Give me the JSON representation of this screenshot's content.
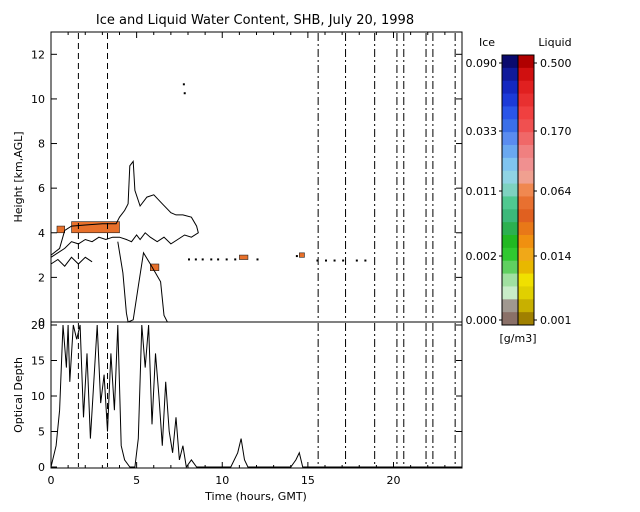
{
  "title": "Ice and Liquid Water Content, SHB, July 20, 1998",
  "chart_data": [
    {
      "type": "heatmap",
      "panel": "top",
      "ylabel": "Height [km,AGL]",
      "xlim": [
        0,
        24
      ],
      "ylim": [
        0,
        13
      ],
      "yticks": [
        0,
        2,
        4,
        6,
        8,
        10,
        12
      ],
      "vertical_markers": {
        "dashed": [
          1.6,
          3.3
        ],
        "dash_dot": [
          15.6,
          17.2,
          18.9,
          20.2,
          20.6,
          21.9,
          22.3,
          23.6
        ]
      },
      "cloud_boundary": {
        "upper": [
          [
            0.0,
            3.0
          ],
          [
            0.5,
            3.3
          ],
          [
            0.8,
            4.1
          ],
          [
            1.2,
            4.3
          ],
          [
            2.0,
            4.35
          ],
          [
            3.0,
            4.4
          ],
          [
            3.8,
            4.4
          ],
          [
            4.0,
            4.7
          ],
          [
            4.3,
            5.0
          ],
          [
            4.5,
            5.3
          ],
          [
            4.6,
            7.0
          ],
          [
            4.8,
            7.2
          ],
          [
            4.9,
            5.9
          ],
          [
            5.2,
            5.2
          ],
          [
            5.6,
            5.6
          ],
          [
            6.0,
            5.7
          ],
          [
            6.5,
            5.3
          ],
          [
            7.0,
            4.9
          ],
          [
            7.3,
            4.8
          ],
          [
            7.7,
            4.8
          ],
          [
            8.2,
            4.7
          ],
          [
            8.5,
            4.3
          ],
          [
            8.6,
            4.0
          ],
          [
            8.2,
            3.8
          ],
          [
            7.8,
            3.9
          ],
          [
            7.4,
            3.7
          ],
          [
            7.0,
            3.5
          ],
          [
            6.6,
            3.8
          ],
          [
            6.2,
            3.6
          ],
          [
            5.8,
            3.8
          ],
          [
            5.5,
            4.0
          ],
          [
            5.2,
            3.7
          ],
          [
            5.0,
            3.9
          ],
          [
            4.7,
            3.6
          ],
          [
            4.4,
            3.7
          ],
          [
            4.0,
            3.8
          ],
          [
            3.6,
            3.8
          ],
          [
            3.2,
            3.7
          ],
          [
            2.8,
            3.8
          ],
          [
            2.4,
            3.6
          ],
          [
            2.0,
            3.7
          ],
          [
            1.6,
            3.5
          ],
          [
            1.2,
            3.6
          ],
          [
            0.8,
            3.3
          ],
          [
            0.4,
            3.1
          ],
          [
            0.0,
            2.9
          ]
        ],
        "lower": [
          [
            3.9,
            3.6
          ],
          [
            4.2,
            2.2
          ],
          [
            4.4,
            0.4
          ],
          [
            4.5,
            0.0
          ],
          [
            4.8,
            0.1
          ],
          [
            5.1,
            1.6
          ],
          [
            5.4,
            3.1
          ],
          [
            5.8,
            2.6
          ],
          [
            6.1,
            2.2
          ],
          [
            6.4,
            1.8
          ],
          [
            6.6,
            0.3
          ],
          [
            6.8,
            0.0
          ]
        ],
        "lower2": [
          [
            0.0,
            2.6
          ],
          [
            0.4,
            2.8
          ],
          [
            0.8,
            2.5
          ],
          [
            1.2,
            2.9
          ],
          [
            1.6,
            2.6
          ],
          [
            2.0,
            2.9
          ],
          [
            2.4,
            2.7
          ]
        ]
      },
      "cells": [
        {
          "t0": 0.35,
          "t1": 0.8,
          "h0": 4.0,
          "h1": 4.3,
          "color": "#e8702a"
        },
        {
          "t0": 1.2,
          "t1": 4.0,
          "h0": 4.0,
          "h1": 4.5,
          "color": "#e8702a"
        },
        {
          "t0": 5.8,
          "t1": 6.3,
          "h0": 2.3,
          "h1": 2.6,
          "color": "#e8702a"
        },
        {
          "t0": 11.0,
          "t1": 11.5,
          "h0": 2.8,
          "h1": 3.0,
          "color": "#e8702a"
        },
        {
          "t0": 14.5,
          "t1": 14.8,
          "h0": 2.9,
          "h1": 3.1,
          "color": "#e8702a"
        }
      ],
      "specks": [
        [
          7.7,
          10.7
        ],
        [
          7.75,
          10.3
        ],
        [
          8.0,
          2.85
        ],
        [
          8.4,
          2.85
        ],
        [
          8.8,
          2.85
        ],
        [
          9.3,
          2.85
        ],
        [
          9.7,
          2.85
        ],
        [
          10.2,
          2.85
        ],
        [
          10.7,
          2.85
        ],
        [
          12.0,
          2.85
        ],
        [
          14.3,
          3.0
        ],
        [
          15.5,
          2.8
        ],
        [
          16.0,
          2.8
        ],
        [
          16.5,
          2.8
        ],
        [
          17.0,
          2.8
        ],
        [
          17.8,
          2.8
        ],
        [
          18.3,
          2.8
        ]
      ]
    },
    {
      "type": "line",
      "panel": "bottom",
      "ylabel": "Optical Depth",
      "xlabel": "Time (hours, GMT)",
      "xlim": [
        0,
        24
      ],
      "ylim": [
        0,
        20
      ],
      "yticks": [
        0,
        5,
        10,
        15,
        20
      ],
      "xticks": [
        0,
        5,
        10,
        15,
        20
      ],
      "x": [
        0.0,
        0.3,
        0.5,
        0.7,
        0.9,
        1.0,
        1.1,
        1.3,
        1.5,
        1.7,
        1.9,
        2.1,
        2.3,
        2.5,
        2.7,
        2.9,
        3.1,
        3.3,
        3.5,
        3.7,
        3.9,
        4.1,
        4.3,
        4.6,
        4.9,
        5.1,
        5.3,
        5.5,
        5.7,
        5.9,
        6.1,
        6.3,
        6.5,
        6.7,
        6.9,
        7.1,
        7.3,
        7.5,
        7.7,
        7.9,
        8.2,
        8.5,
        9.0,
        9.5,
        10.0,
        10.5,
        10.9,
        11.1,
        11.3,
        11.5,
        12.0,
        13.0,
        14.0,
        14.3,
        14.5,
        14.7,
        15.0,
        16.0,
        18.0,
        20.0,
        22.0,
        24.0
      ],
      "y": [
        0,
        3,
        8,
        20,
        14,
        20,
        12,
        20,
        18,
        20,
        7,
        16,
        4,
        12,
        20,
        9,
        13,
        5,
        16,
        8,
        20,
        3,
        1,
        0,
        0,
        4,
        20,
        14,
        20,
        6,
        16,
        10,
        3,
        12,
        5,
        2,
        7,
        1,
        3,
        0,
        1,
        0,
        0,
        0,
        0,
        0,
        2,
        4,
        1,
        0,
        0,
        0,
        0,
        1,
        2,
        0,
        0,
        0,
        0,
        0,
        0,
        0
      ]
    },
    {
      "type": "colorbar",
      "label_ice": "Ice",
      "label_liquid": "Liquid",
      "units": "[g/m3]",
      "ice_ticks": [
        "0.090",
        "0.033",
        "0.011",
        "0.002",
        "0.000"
      ],
      "liquid_ticks": [
        "0.500",
        "0.170",
        "0.064",
        "0.014",
        "0.001"
      ],
      "ice_colors": [
        "#0a0a6e",
        "#101a9a",
        "#1428c0",
        "#1c3ad8",
        "#2a55e8",
        "#3a6fe8",
        "#5a8cf0",
        "#6aa8f0",
        "#80c4f0",
        "#90d4e4",
        "#7ed2c0",
        "#50c890",
        "#3cb87a",
        "#2cb050",
        "#22b822",
        "#30c830",
        "#60d060",
        "#a0e0a0",
        "#c8ecc8",
        "#a09890",
        "#8a7068"
      ],
      "liquid_colors": [
        "#b00000",
        "#d01010",
        "#e02020",
        "#e83030",
        "#f04040",
        "#f05050",
        "#f06868",
        "#f08080",
        "#f09090",
        "#f0a090",
        "#f08850",
        "#e87030",
        "#e06020",
        "#e87818",
        "#f09010",
        "#f0a818",
        "#e8b800",
        "#f0e000",
        "#e0d000",
        "#c8b000",
        "#a08000"
      ]
    }
  ]
}
